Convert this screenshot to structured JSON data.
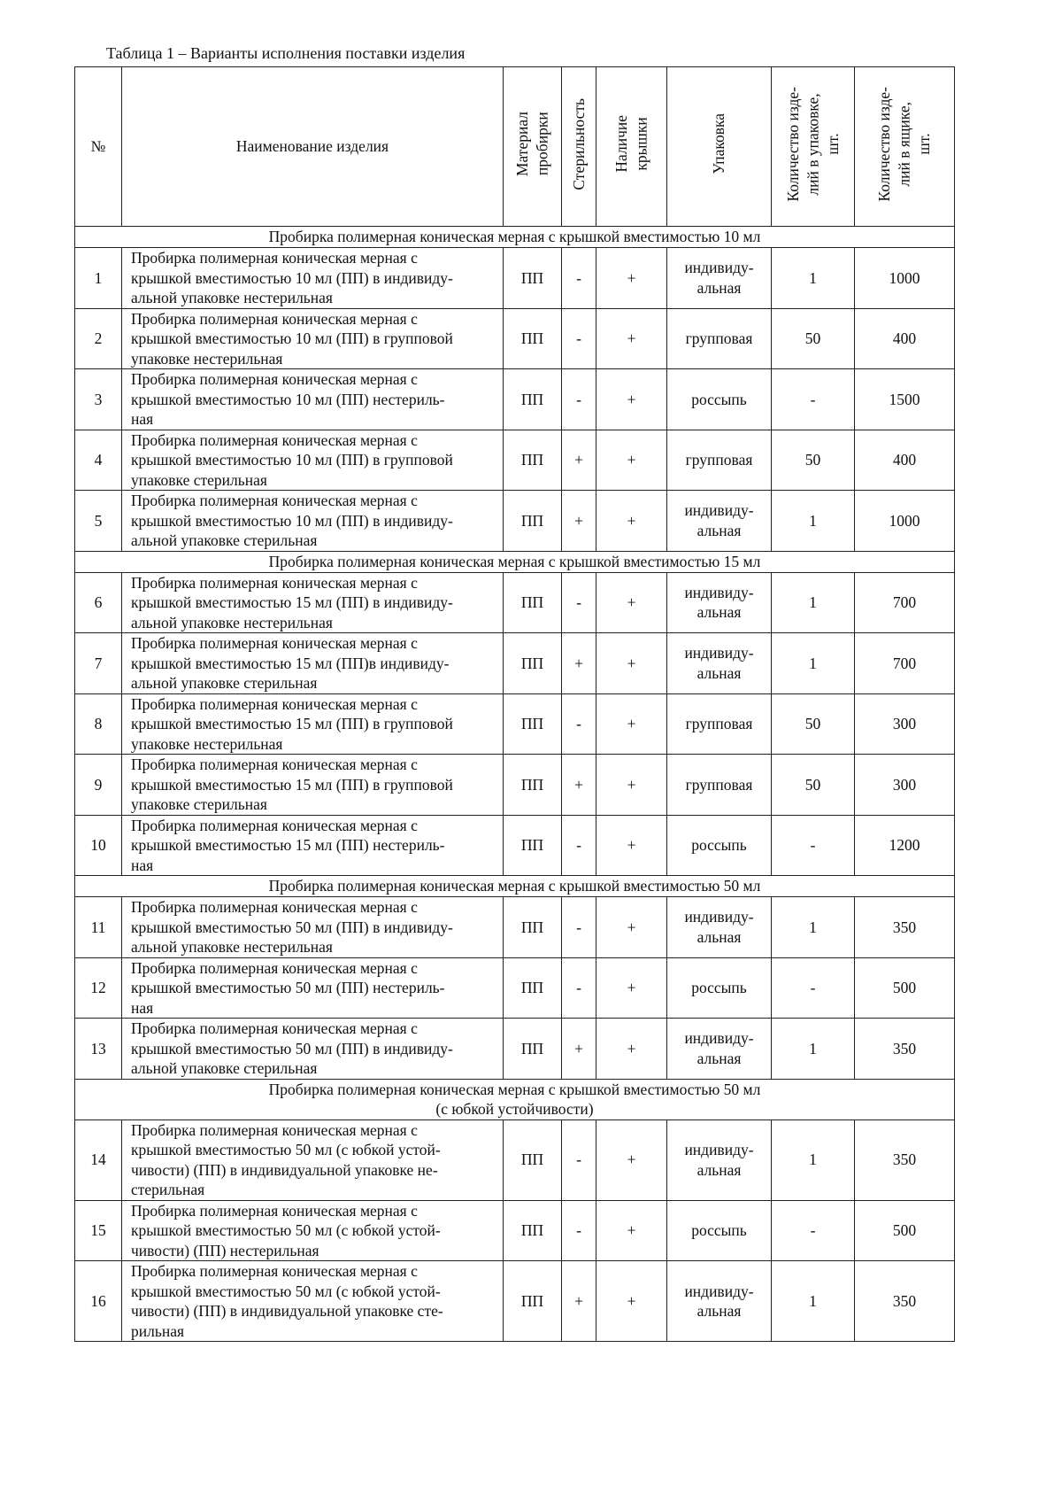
{
  "caption": "Таблица 1 – Варианты исполнения поставки изделия",
  "table": {
    "header": [
      "№",
      "Наименование изделия",
      "Материал\nпробирки",
      "Стерильность",
      "Наличие\nкрышки",
      "Упаковка",
      "Количество изде-\nлий в упаковке,\nшт.",
      "Количество изде-\nлий в ящике,\nшт."
    ],
    "groups": [
      {
        "title": "Пробирка полимерная коническая мерная с крышкой вместимостью 10 мл",
        "rows": [
          [
            "1",
            "Пробирка полимерная коническая мерная с\nкрышкой вместимостью 10 мл (ПП) в индивиду-\nальной упаковке нестерильная",
            "ПП",
            "-",
            "+",
            "индивиду-\nальная",
            "1",
            "1000"
          ],
          [
            "2",
            "Пробирка полимерная коническая мерная с\nкрышкой вместимостью 10 мл (ПП) в групповой\nупаковке нестерильная",
            "ПП",
            "-",
            "+",
            "групповая",
            "50",
            "400"
          ],
          [
            "3",
            "Пробирка полимерная коническая мерная с\nкрышкой вместимостью 10 мл (ПП) нестериль-\nная",
            "ПП",
            "-",
            "+",
            "россыпь",
            "-",
            "1500"
          ],
          [
            "4",
            "Пробирка полимерная коническая мерная с\nкрышкой вместимостью 10 мл (ПП) в групповой\nупаковке стерильная",
            "ПП",
            "+",
            "+",
            "групповая",
            "50",
            "400"
          ],
          [
            "5",
            "Пробирка полимерная коническая мерная с\nкрышкой вместимостью 10 мл (ПП) в индивиду-\nальной упаковке стерильная",
            "ПП",
            "+",
            "+",
            "индивиду-\nальная",
            "1",
            "1000"
          ]
        ]
      },
      {
        "title": "Пробирка полимерная коническая мерная с крышкой вместимостью 15 мл",
        "rows": [
          [
            "6",
            "Пробирка полимерная коническая мерная с\nкрышкой вместимостью 15 мл (ПП) в индивиду-\nальной упаковке нестерильная",
            "ПП",
            "-",
            "+",
            "индивиду-\nальная",
            "1",
            "700"
          ],
          [
            "7",
            "Пробирка полимерная коническая мерная с\nкрышкой вместимостью 15 мл (ПП)в индивиду-\nальной упаковке стерильная",
            "ПП",
            "+",
            "+",
            "индивиду-\nальная",
            "1",
            "700"
          ],
          [
            "8",
            "Пробирка полимерная коническая мерная с\nкрышкой вместимостью 15 мл (ПП) в групповой\nупаковке нестерильная",
            "ПП",
            "-",
            "+",
            "групповая",
            "50",
            "300"
          ],
          [
            "9",
            "Пробирка полимерная коническая мерная с\nкрышкой вместимостью 15 мл (ПП) в групповой\nупаковке стерильная",
            "ПП",
            "+",
            "+",
            "групповая",
            "50",
            "300"
          ],
          [
            "10",
            "Пробирка полимерная коническая мерная с\nкрышкой вместимостью 15 мл (ПП) нестериль-\nная",
            "ПП",
            "-",
            "+",
            "россыпь",
            "-",
            "1200"
          ]
        ]
      },
      {
        "title": "Пробирка полимерная коническая мерная с крышкой вместимостью 50 мл",
        "rows": [
          [
            "11",
            "Пробирка полимерная коническая мерная с\nкрышкой вместимостью 50 мл (ПП) в индивиду-\nальной упаковке нестерильная",
            "ПП",
            "-",
            "+",
            "индивиду-\nальная",
            "1",
            "350"
          ],
          [
            "12",
            "Пробирка полимерная коническая мерная с\nкрышкой вместимостью 50 мл (ПП) нестериль-\nная",
            "ПП",
            "-",
            "+",
            "россыпь",
            "-",
            "500"
          ],
          [
            "13",
            "Пробирка полимерная коническая мерная с\nкрышкой вместимостью 50 мл (ПП) в индивиду-\nальной упаковке стерильная",
            "ПП",
            "+",
            "+",
            "индивиду-\nальная",
            "1",
            "350"
          ]
        ]
      },
      {
        "title": "Пробирка полимерная коническая мерная с крышкой вместимостью 50 мл\n(с юбкой устойчивости)",
        "rows": [
          [
            "14",
            "Пробирка полимерная коническая мерная с\nкрышкой вместимостью 50 мл (с юбкой устой-\nчивости) (ПП) в индивидуальной упаковке не-\nстерильная",
            "ПП",
            "-",
            "+",
            "индивиду-\nальная",
            "1",
            "350"
          ],
          [
            "15",
            "Пробирка полимерная коническая мерная с\nкрышкой вместимостью 50 мл (с юбкой устой-\nчивости) (ПП) нестерильная",
            "ПП",
            "-",
            "+",
            "россыпь",
            "-",
            "500"
          ],
          [
            "16",
            "Пробирка полимерная коническая мерная с\nкрышкой вместимостью 50 мл (с юбкой устой-\nчивости) (ПП) в индивидуальной упаковке сте-\nрильная",
            "ПП",
            "+",
            "+",
            "индивиду-\nальная",
            "1",
            "350"
          ]
        ]
      }
    ]
  }
}
